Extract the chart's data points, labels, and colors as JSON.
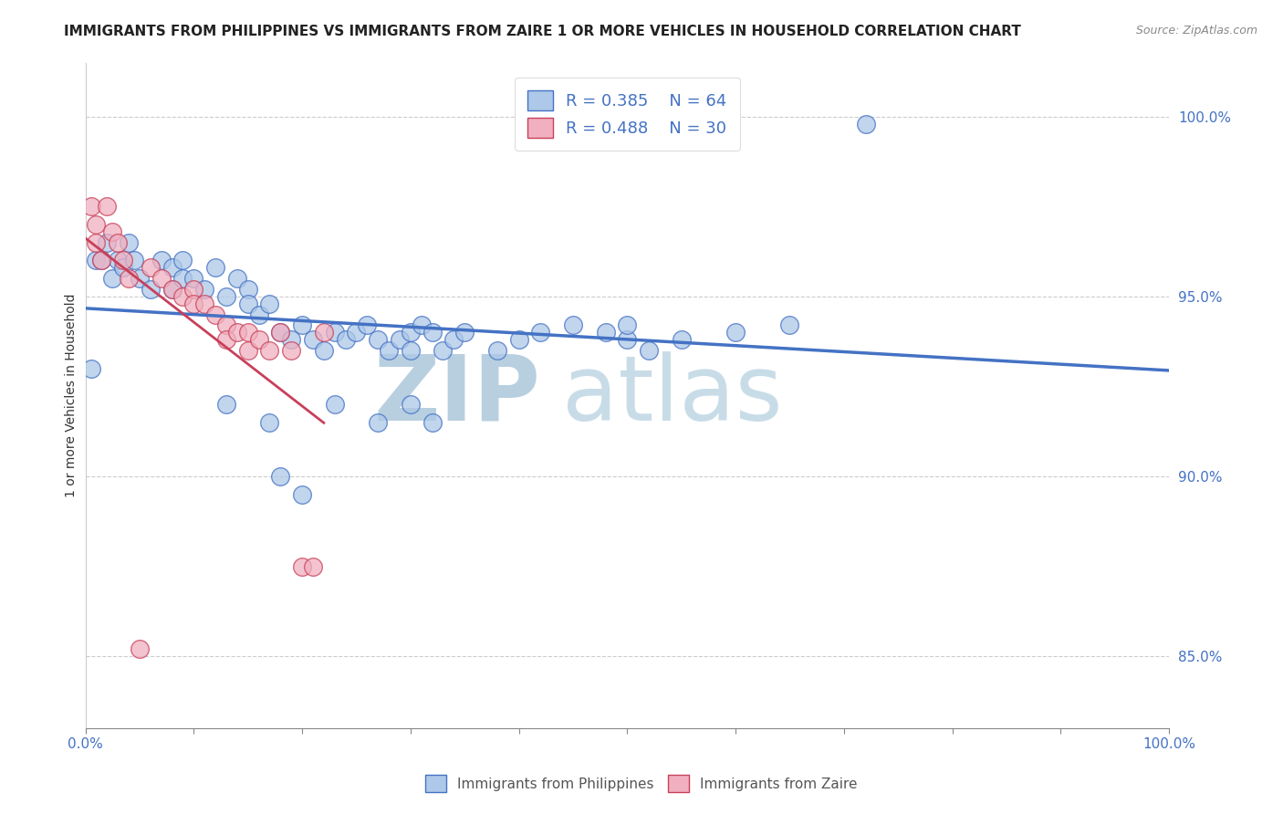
{
  "title": "IMMIGRANTS FROM PHILIPPINES VS IMMIGRANTS FROM ZAIRE 1 OR MORE VEHICLES IN HOUSEHOLD CORRELATION CHART",
  "source": "Source: ZipAtlas.com",
  "ylabel": "1 or more Vehicles in Household",
  "xlim": [
    0.0,
    1.0
  ],
  "ylim": [
    0.83,
    1.015
  ],
  "ytick_labels": [
    "85.0%",
    "90.0%",
    "95.0%",
    "100.0%"
  ],
  "ytick_values": [
    0.85,
    0.9,
    0.95,
    1.0
  ],
  "xtick_labels": [
    "0.0%",
    "",
    "",
    "",
    "",
    "",
    "",
    "",
    "",
    "100.0%"
  ],
  "xtick_values": [
    0.0,
    0.1,
    0.2,
    0.3,
    0.4,
    0.5,
    0.6,
    0.7,
    0.8,
    1.0
  ],
  "r_philippines": 0.385,
  "n_philippines": 64,
  "r_zaire": 0.488,
  "n_zaire": 30,
  "legend_label_1": "Immigrants from Philippines",
  "legend_label_2": "Immigrants from Zaire",
  "color_philippines": "#adc8e8",
  "color_zaire": "#f0b0c0",
  "line_color_philippines": "#4472c4",
  "line_color_zaire": "#c8405a",
  "watermark_zip": "ZIP",
  "watermark_atlas": "atlas",
  "watermark_color": "#dce8f0",
  "background_color": "#ffffff",
  "title_fontsize": 11,
  "phil_x": [
    0.005,
    0.01,
    0.015,
    0.02,
    0.025,
    0.03,
    0.035,
    0.04,
    0.045,
    0.05,
    0.06,
    0.07,
    0.08,
    0.08,
    0.09,
    0.09,
    0.1,
    0.11,
    0.12,
    0.13,
    0.14,
    0.15,
    0.15,
    0.16,
    0.17,
    0.18,
    0.19,
    0.2,
    0.21,
    0.22,
    0.23,
    0.24,
    0.25,
    0.26,
    0.27,
    0.28,
    0.29,
    0.3,
    0.3,
    0.31,
    0.32,
    0.33,
    0.34,
    0.35,
    0.38,
    0.4,
    0.42,
    0.45,
    0.48,
    0.5,
    0.5,
    0.52,
    0.55,
    0.6,
    0.65,
    0.72,
    0.13,
    0.17,
    0.23,
    0.27,
    0.3,
    0.32,
    0.18,
    0.2
  ],
  "phil_y": [
    0.93,
    0.96,
    0.96,
    0.965,
    0.955,
    0.96,
    0.958,
    0.965,
    0.96,
    0.955,
    0.952,
    0.96,
    0.958,
    0.952,
    0.96,
    0.955,
    0.955,
    0.952,
    0.958,
    0.95,
    0.955,
    0.952,
    0.948,
    0.945,
    0.948,
    0.94,
    0.938,
    0.942,
    0.938,
    0.935,
    0.94,
    0.938,
    0.94,
    0.942,
    0.938,
    0.935,
    0.938,
    0.94,
    0.935,
    0.942,
    0.94,
    0.935,
    0.938,
    0.94,
    0.935,
    0.938,
    0.94,
    0.942,
    0.94,
    0.938,
    0.942,
    0.935,
    0.938,
    0.94,
    0.942,
    0.998,
    0.92,
    0.915,
    0.92,
    0.915,
    0.92,
    0.915,
    0.9,
    0.895
  ],
  "zaire_x": [
    0.005,
    0.01,
    0.01,
    0.015,
    0.02,
    0.025,
    0.03,
    0.035,
    0.04,
    0.05,
    0.06,
    0.07,
    0.08,
    0.09,
    0.1,
    0.1,
    0.11,
    0.12,
    0.13,
    0.13,
    0.14,
    0.15,
    0.15,
    0.16,
    0.17,
    0.18,
    0.19,
    0.2,
    0.21,
    0.22
  ],
  "zaire_y": [
    0.975,
    0.97,
    0.965,
    0.96,
    0.975,
    0.968,
    0.965,
    0.96,
    0.955,
    0.852,
    0.958,
    0.955,
    0.952,
    0.95,
    0.952,
    0.948,
    0.948,
    0.945,
    0.942,
    0.938,
    0.94,
    0.94,
    0.935,
    0.938,
    0.935,
    0.94,
    0.935,
    0.875,
    0.875,
    0.94
  ]
}
